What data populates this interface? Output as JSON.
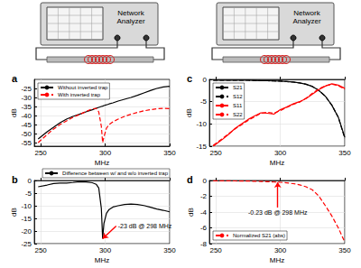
{
  "diagram": {
    "instruments": [
      {
        "label": "Network Analyzer"
      },
      {
        "label": "Network Analyzer"
      }
    ]
  },
  "chart_data": [
    {
      "type": "line",
      "title": "a",
      "x_label": "MHz",
      "y_label": "dB",
      "x": [
        248,
        255,
        260,
        265,
        270,
        275,
        280,
        285,
        290,
        293,
        295,
        297,
        298,
        299,
        301,
        303,
        306,
        310,
        315,
        320,
        325,
        330,
        335,
        340,
        345,
        350
      ],
      "series": [
        {
          "name": "Without inverted trap",
          "color": "#000000",
          "line_style": "solid",
          "values": [
            -53,
            -49,
            -46.5,
            -44,
            -42,
            -40.5,
            -39.3,
            -38,
            -36.8,
            -36,
            -35.5,
            -35,
            -34.8,
            -34.5,
            -34.1,
            -33.6,
            -33,
            -32,
            -31,
            -30,
            -28.8,
            -27.5,
            -26.2,
            -25,
            -24.2,
            -23.8
          ]
        },
        {
          "name": "With inverted trap",
          "color": "#ff0000",
          "line_style": "dashed",
          "values": [
            -55,
            -50.5,
            -47.5,
            -45,
            -43,
            -41,
            -39.5,
            -37.8,
            -36.3,
            -36,
            -38,
            -46,
            -55,
            -52,
            -47,
            -45,
            -43.5,
            -42,
            -40.5,
            -39.3,
            -38.3,
            -37.4,
            -36.8,
            -36.3,
            -36,
            -36.2
          ]
        }
      ],
      "xlim": [
        245,
        350
      ],
      "xticks": [
        250,
        300,
        350
      ],
      "ylim": [
        -57,
        -20
      ],
      "yticks": [
        -55,
        -50,
        -45,
        -40,
        -35,
        -30,
        -25
      ],
      "grid": true,
      "legend": "upper left"
    },
    {
      "type": "line",
      "title": "b",
      "x_label": "MHz",
      "y_label": "dB",
      "x": [
        248,
        255,
        260,
        265,
        270,
        275,
        280,
        285,
        290,
        293,
        295,
        297,
        298,
        299,
        301,
        303,
        306,
        310,
        315,
        320,
        325,
        330,
        335,
        340,
        345,
        350
      ],
      "series": [
        {
          "name": "Difference between w/ and w/o inverted trap",
          "color": "#000000",
          "line_style": "solid",
          "values": [
            -2.5,
            -1.8,
            -1.2,
            -1,
            -1,
            -0.8,
            -0.5,
            -0.6,
            -0.9,
            -1.5,
            -3,
            -11,
            -23,
            -17,
            -13,
            -11.5,
            -10.5,
            -10,
            -9.5,
            -9.3,
            -9.5,
            -9.9,
            -10.6,
            -11.3,
            -11.8,
            -12.4
          ]
        }
      ],
      "xlim": [
        245,
        350
      ],
      "xticks": [
        250,
        300,
        350
      ],
      "ylim": [
        -25,
        0
      ],
      "yticks": [
        -25,
        -20,
        -15,
        -10,
        -5,
        0
      ],
      "grid": true,
      "legend": "top",
      "annotations": [
        {
          "text": "-23 dB @ 298 MHz",
          "x": 298,
          "y": -23
        }
      ]
    },
    {
      "type": "line",
      "title": "c",
      "x_label": "MHz",
      "y_label": "dB",
      "x": [
        248,
        255,
        260,
        265,
        270,
        275,
        280,
        285,
        290,
        295,
        300,
        305,
        310,
        315,
        320,
        325,
        330,
        335,
        340,
        345,
        350
      ],
      "series": [
        {
          "name": "S21",
          "color": "#000000",
          "line_style": "solid",
          "values": [
            -0.2,
            -0.2,
            -0.2,
            -0.2,
            -0.2,
            -0.2,
            -0.25,
            -0.3,
            -0.3,
            -0.35,
            -0.4,
            -0.5,
            -0.6,
            -0.8,
            -1.1,
            -1.6,
            -2.5,
            -3.8,
            -5.8,
            -8.5,
            -13
          ]
        },
        {
          "name": "S12",
          "color": "#000000",
          "line_style": "dashed",
          "values": [
            -0.2,
            -0.2,
            -0.2,
            -0.2,
            -0.2,
            -0.2,
            -0.25,
            -0.3,
            -0.3,
            -0.35,
            -0.4,
            -0.5,
            -0.6,
            -0.8,
            -1.1,
            -1.6,
            -2.5,
            -3.8,
            -5.8,
            -8.5,
            -13.2
          ]
        },
        {
          "name": "S11",
          "color": "#ff0000",
          "line_style": "solid",
          "values": [
            -15,
            -13.5,
            -12.3,
            -11,
            -10,
            -9,
            -8.2,
            -7.5,
            -7.6,
            -7.8,
            -6.8,
            -6.2,
            -5.5,
            -5,
            -4.3,
            -3.3,
            -2.3,
            -1.5,
            -1,
            -1.3,
            -2
          ]
        },
        {
          "name": "S22",
          "color": "#ff0000",
          "line_style": "dashed",
          "values": [
            -14.8,
            -13.3,
            -12.2,
            -11.1,
            -10.2,
            -9.2,
            -8.4,
            -7.6,
            -7.4,
            -7.6,
            -7,
            -6.3,
            -5.6,
            -5.1,
            -4.2,
            -3.1,
            -2.1,
            -1.4,
            -1.1,
            -1.4,
            -2.2
          ]
        }
      ],
      "xlim": [
        245,
        350
      ],
      "xticks": [
        250,
        300,
        350
      ],
      "ylim": [
        -15,
        0
      ],
      "yticks": [
        -15,
        -10,
        -5,
        0
      ],
      "grid": true,
      "legend": "upper left"
    },
    {
      "type": "line",
      "title": "d",
      "x_label": "MHz",
      "y_label": "dB",
      "x": [
        248,
        255,
        260,
        265,
        270,
        275,
        280,
        285,
        290,
        295,
        300,
        305,
        310,
        315,
        320,
        325,
        330,
        335,
        340,
        345,
        350
      ],
      "series": [
        {
          "name": "Normalized S21 (abs)",
          "color": "#ff0000",
          "line_style": "dashed",
          "values": [
            -0.05,
            -0.05,
            -0.05,
            -0.06,
            -0.07,
            -0.08,
            -0.1,
            -0.12,
            -0.15,
            -0.2,
            -0.23,
            -0.3,
            -0.4,
            -0.55,
            -0.8,
            -1.2,
            -2,
            -3.2,
            -4.5,
            -6,
            -7.8
          ]
        }
      ],
      "xlim": [
        245,
        350
      ],
      "xticks": [
        250,
        300,
        350
      ],
      "ylim": [
        -8,
        0
      ],
      "yticks": [
        -8,
        -6,
        -4,
        -2,
        0
      ],
      "grid": true,
      "legend": "lower left",
      "annotations": [
        {
          "text": "-0.23 dB @ 298 MHz",
          "x": 298,
          "y": -0.23
        }
      ]
    }
  ]
}
